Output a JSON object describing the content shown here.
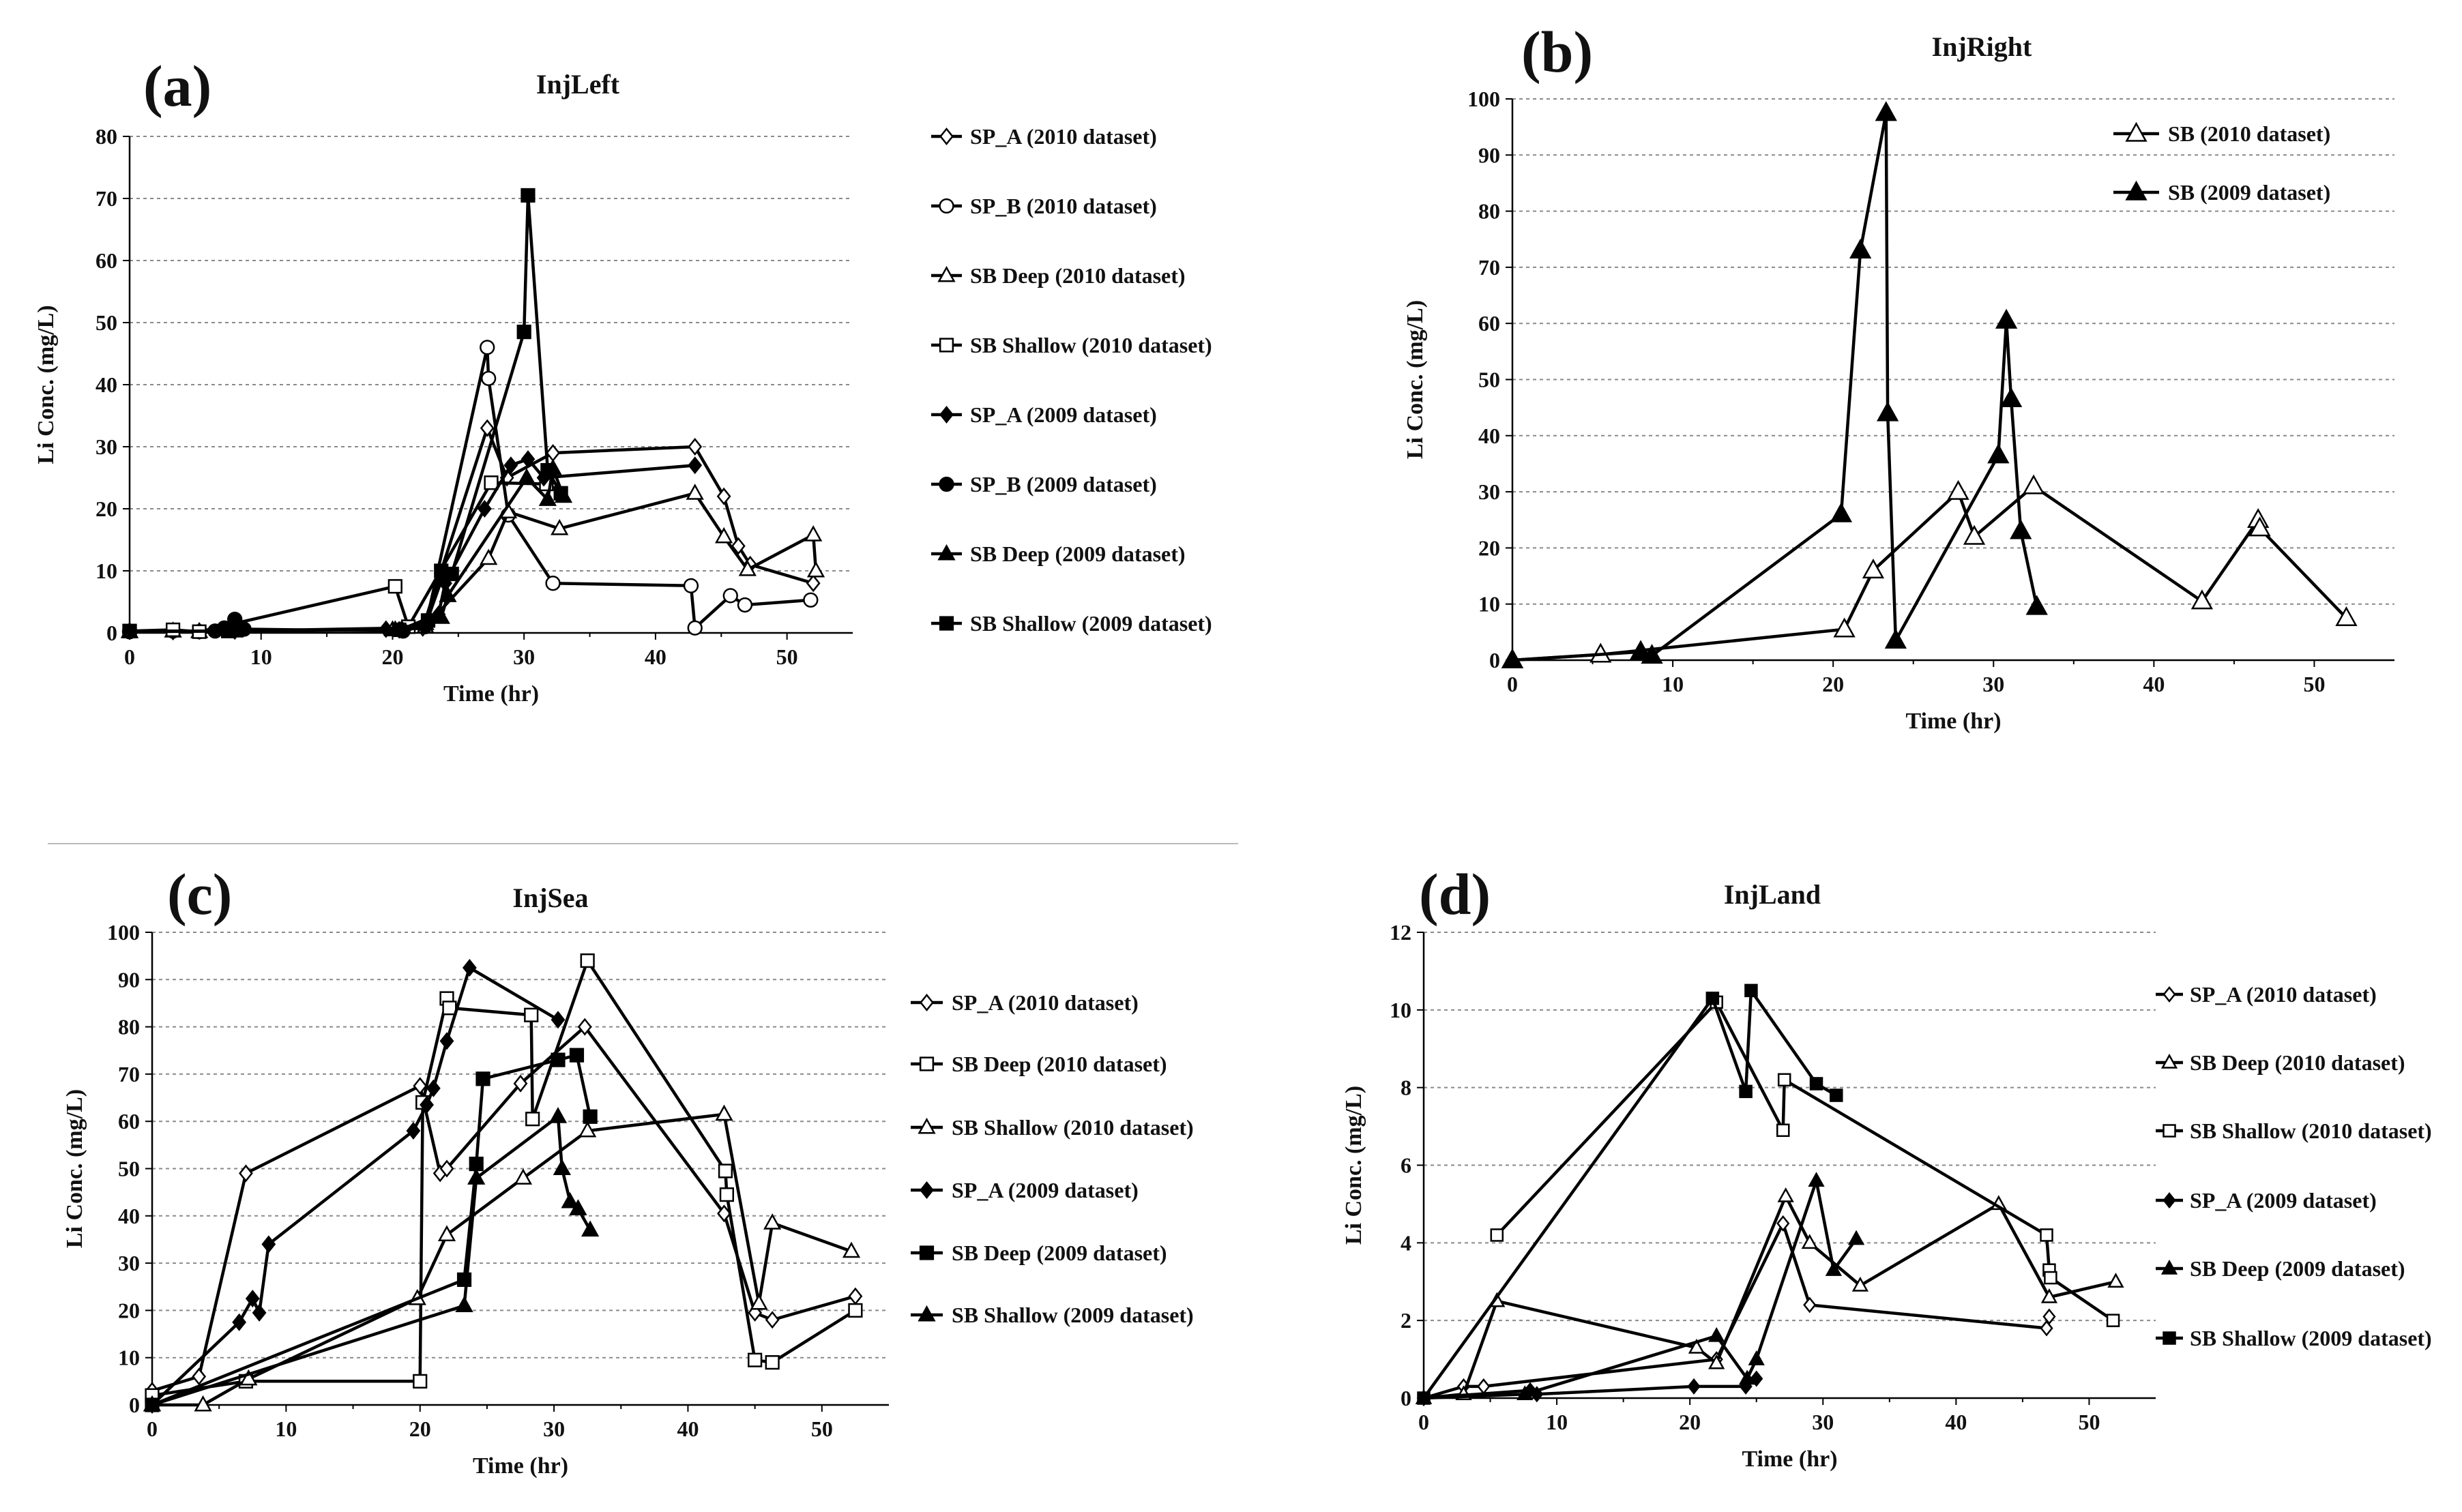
{
  "figure": {
    "panels": [
      "(a)",
      "(b)",
      "(c)",
      "(d)"
    ]
  },
  "chart_data": [
    {
      "panel": "(a)",
      "type": "line",
      "title": "InjLeft",
      "xlabel": "Time (hr)",
      "ylabel": "Li Conc. (mg/L)",
      "xlim": [
        0,
        55
      ],
      "ylim": [
        0,
        80
      ],
      "xticks": [
        0,
        10,
        20,
        30,
        40,
        50
      ],
      "yticks": [
        0,
        10,
        20,
        30,
        40,
        50,
        60,
        70,
        80
      ],
      "grid": "horizontal dashed",
      "legend_position": "right",
      "series": [
        {
          "name": "SP_A (2010 dataset)",
          "marker": "diamond-open",
          "x": [
            0,
            3.3,
            5.3,
            20.5,
            22.3,
            27.2,
            28.7,
            32.2,
            43,
            45.2,
            46.3,
            47.2,
            52
          ],
          "y": [
            0.3,
            0.2,
            0.3,
            0.5,
            0.8,
            33,
            25,
            29,
            30,
            22,
            14,
            11,
            8
          ]
        },
        {
          "name": "SP_B (2010 dataset)",
          "marker": "circle-open",
          "x": [
            0,
            3.3,
            5.3,
            21,
            22.5,
            27.2,
            27.3,
            28.8,
            32.2,
            42.7,
            43,
            45.7,
            46.8,
            51.8
          ],
          "y": [
            0.2,
            0.3,
            0.2,
            0.8,
            1,
            46,
            41,
            19,
            8,
            7.6,
            0.8,
            6,
            4.5,
            5.3
          ]
        },
        {
          "name": "SB Deep (2010 dataset)",
          "marker": "triangle-open",
          "x": [
            0,
            3.3,
            5.3,
            20,
            22.5,
            27.3,
            28.8,
            32.7,
            43,
            45.2,
            47,
            52,
            52.2
          ],
          "y": [
            0.2,
            0.3,
            0.2,
            0.5,
            1,
            12,
            19.5,
            16.8,
            22.5,
            15.5,
            10.2,
            15.8,
            10
          ]
        },
        {
          "name": "SB Shallow (2010 dataset)",
          "marker": "square-open",
          "x": [
            0,
            3.3,
            5.3,
            20.2,
            21.2,
            27.5,
            31.7
          ],
          "y": [
            0.3,
            0.5,
            0.2,
            7.5,
            1,
            24.2,
            24
          ]
        },
        {
          "name": "SP_A (2009 dataset)",
          "marker": "diamond-filled",
          "x": [
            0,
            8,
            19.5,
            20.7,
            23.5,
            24,
            27,
            29,
            30.3,
            31.5,
            43
          ],
          "y": [
            0.3,
            0.3,
            0.6,
            0.6,
            3,
            8,
            20,
            27,
            28,
            25,
            27
          ]
        },
        {
          "name": "SP_B (2009 dataset)",
          "marker": "circle-filled",
          "x": [
            0,
            6.5,
            7.2,
            8,
            8.7,
            20.8,
            22.5,
            23.8
          ],
          "y": [
            0.2,
            0.3,
            0.8,
            2.2,
            0.6,
            0.3,
            1.2,
            9
          ]
        },
        {
          "name": "SB Deep (2009 dataset)",
          "marker": "triangle-filled",
          "x": [
            0,
            8,
            20.2,
            22.5,
            23.7,
            24.2,
            30.2,
            31.8,
            32.2,
            33
          ],
          "y": [
            0.2,
            0.3,
            0.5,
            1.5,
            2.5,
            6,
            25,
            21.5,
            26.5,
            22
          ]
        },
        {
          "name": "SB Shallow (2009 dataset)",
          "marker": "square-filled",
          "x": [
            0,
            7.5,
            20.5,
            22.7,
            23.7,
            24.5,
            30,
            30.3,
            31.8,
            32.8
          ],
          "y": [
            0.3,
            0.3,
            0.5,
            2,
            10,
            9.5,
            48.5,
            70.5,
            26.2,
            22.5
          ]
        }
      ]
    },
    {
      "panel": "(b)",
      "type": "line",
      "title": "InjRight",
      "xlabel": "Time (hr)",
      "ylabel": "Li Conc. (mg/L)",
      "xlim": [
        0,
        55
      ],
      "ylim": [
        0,
        100
      ],
      "xticks": [
        0,
        10,
        20,
        30,
        40,
        50
      ],
      "yticks": [
        0,
        10,
        20,
        30,
        40,
        50,
        60,
        70,
        80,
        90,
        100
      ],
      "grid": "horizontal dashed",
      "legend_position": "top-right",
      "series": [
        {
          "name": "SB (2010 dataset)",
          "marker": "triangle-open",
          "x": [
            0,
            5.5,
            20.7,
            22.5,
            27.8,
            28.8,
            32.5,
            43,
            46.5,
            46.6,
            52
          ],
          "y": [
            0,
            1,
            5.5,
            16,
            30,
            22,
            31,
            10.5,
            25,
            23.5,
            7.5
          ]
        },
        {
          "name": "SB (2009 dataset)",
          "marker": "triangle-filled",
          "x": [
            0,
            8,
            8.7,
            20.5,
            21.7,
            23.3,
            23.4,
            23.9,
            30.3,
            30.8,
            31.1,
            31.7,
            32.7
          ],
          "y": [
            0,
            1.5,
            0.8,
            26,
            73,
            97.5,
            44,
            3.5,
            36.5,
            60.5,
            46.5,
            23,
            9.5
          ]
        }
      ]
    },
    {
      "panel": "(c)",
      "type": "line",
      "title": "InjSea",
      "xlabel": "Time (hr)",
      "ylabel": "Li Conc. (mg/L)",
      "xlim": [
        0,
        55
      ],
      "ylim": [
        0,
        100
      ],
      "xticks": [
        0,
        10,
        20,
        30,
        40,
        50
      ],
      "yticks": [
        0,
        10,
        20,
        30,
        40,
        50,
        60,
        70,
        80,
        90,
        100
      ],
      "grid": "horizontal dashed",
      "legend_position": "right",
      "series": [
        {
          "name": "SP_A (2010 dataset)",
          "marker": "diamond-open",
          "x": [
            0,
            3.5,
            7,
            20,
            21.5,
            22,
            27.5,
            32.3,
            42.7,
            45,
            46.3,
            52.5
          ],
          "y": [
            3,
            6,
            49,
            67.5,
            49,
            50,
            68,
            80,
            40.5,
            19.5,
            18,
            23
          ]
        },
        {
          "name": "SB Deep (2010 dataset)",
          "marker": "square-open",
          "x": [
            0,
            7,
            20,
            20.2,
            22,
            22.2,
            28.3,
            28.4,
            32.5,
            42.8,
            42.9,
            45,
            46.3,
            52.5
          ],
          "y": [
            2,
            5,
            5,
            64,
            86,
            84,
            82.5,
            60.5,
            94,
            49.5,
            44.5,
            9.5,
            9,
            20
          ]
        },
        {
          "name": "SB Shallow (2010 dataset)",
          "marker": "triangle-open",
          "x": [
            0,
            3.8,
            7.2,
            19.8,
            22,
            27.7,
            32.5,
            42.7,
            45.3,
            46.3,
            52.2
          ],
          "y": [
            0,
            0,
            5.5,
            22.5,
            36,
            48,
            58,
            61.5,
            21.5,
            38.5,
            32.5
          ]
        },
        {
          "name": "SP_A (2009 dataset)",
          "marker": "diamond-filled",
          "x": [
            0,
            6.5,
            7.5,
            8,
            8.7,
            19.5,
            20.5,
            21,
            22,
            23.7,
            30.3
          ],
          "y": [
            0,
            17.5,
            22.5,
            19.5,
            34,
            58,
            63.5,
            67,
            77,
            92.5,
            81.5
          ]
        },
        {
          "name": "SB Deep (2009 dataset)",
          "marker": "square-filled",
          "x": [
            0,
            23.3,
            24.2,
            24.7,
            30.3,
            31.7,
            32.7
          ],
          "y": [
            0,
            26.5,
            51,
            69,
            73,
            74,
            61
          ]
        },
        {
          "name": "SB Shallow (2009 dataset)",
          "marker": "triangle-filled",
          "x": [
            0,
            23.3,
            24.2,
            30.3,
            30.6,
            31.2,
            31.8,
            32.7
          ],
          "y": [
            0,
            21,
            48,
            61,
            50,
            43,
            41.5,
            37
          ]
        }
      ]
    },
    {
      "panel": "(d)",
      "type": "line",
      "title": "InjLand",
      "xlabel": "Time (hr)",
      "ylabel": "Li Conc. (mg/L)",
      "xlim": [
        0,
        55
      ],
      "ylim": [
        0,
        12
      ],
      "xticks": [
        0,
        10,
        20,
        30,
        40,
        50
      ],
      "yticks": [
        0,
        2,
        4,
        6,
        8,
        10,
        12
      ],
      "grid": "horizontal dashed",
      "legend_position": "right",
      "series": [
        {
          "name": "SP_A (2010 dataset)",
          "marker": "diamond-open",
          "x": [
            0,
            3,
            4.5,
            22,
            27,
            29,
            46.8,
            47
          ],
          "y": [
            0,
            0.3,
            0.3,
            1,
            4.5,
            2.4,
            1.8,
            2.1
          ]
        },
        {
          "name": "SB Deep (2010 dataset)",
          "marker": "triangle-open",
          "x": [
            0,
            3,
            5.5,
            20.5,
            22,
            27.2,
            29,
            32.8,
            43.2,
            47,
            52
          ],
          "y": [
            0,
            0.1,
            2.5,
            1.3,
            0.9,
            5.2,
            4,
            2.9,
            5,
            2.6,
            3
          ]
        },
        {
          "name": "SB Shallow (2010 dataset)",
          "marker": "square-open",
          "x": [
            5.5,
            22,
            27,
            27.1,
            46.8,
            47,
            47.1,
            51.8
          ],
          "y": [
            4.2,
            10.2,
            6.9,
            8.2,
            4.2,
            3.3,
            3.1,
            2
          ]
        },
        {
          "name": "SP_A (2009 dataset)",
          "marker": "diamond-filled",
          "x": [
            0,
            8,
            8.5,
            20.3,
            24.2,
            25
          ],
          "y": [
            0,
            0.2,
            0.1,
            0.3,
            0.3,
            0.5
          ]
        },
        {
          "name": "SB Deep (2009 dataset)",
          "marker": "triangle-filled",
          "x": [
            0,
            7.6,
            22,
            24.3,
            25,
            29.5,
            30.8,
            32.5
          ],
          "y": [
            0,
            0.1,
            1.6,
            0.5,
            1,
            5.6,
            3.3,
            4.1
          ]
        },
        {
          "name": "SB Shallow (2009 dataset)",
          "marker": "square-filled",
          "x": [
            0,
            21.7,
            24.2,
            24.6,
            29.5,
            31
          ],
          "y": [
            0,
            10.3,
            7.9,
            10.5,
            8.1,
            7.8
          ]
        }
      ]
    }
  ]
}
